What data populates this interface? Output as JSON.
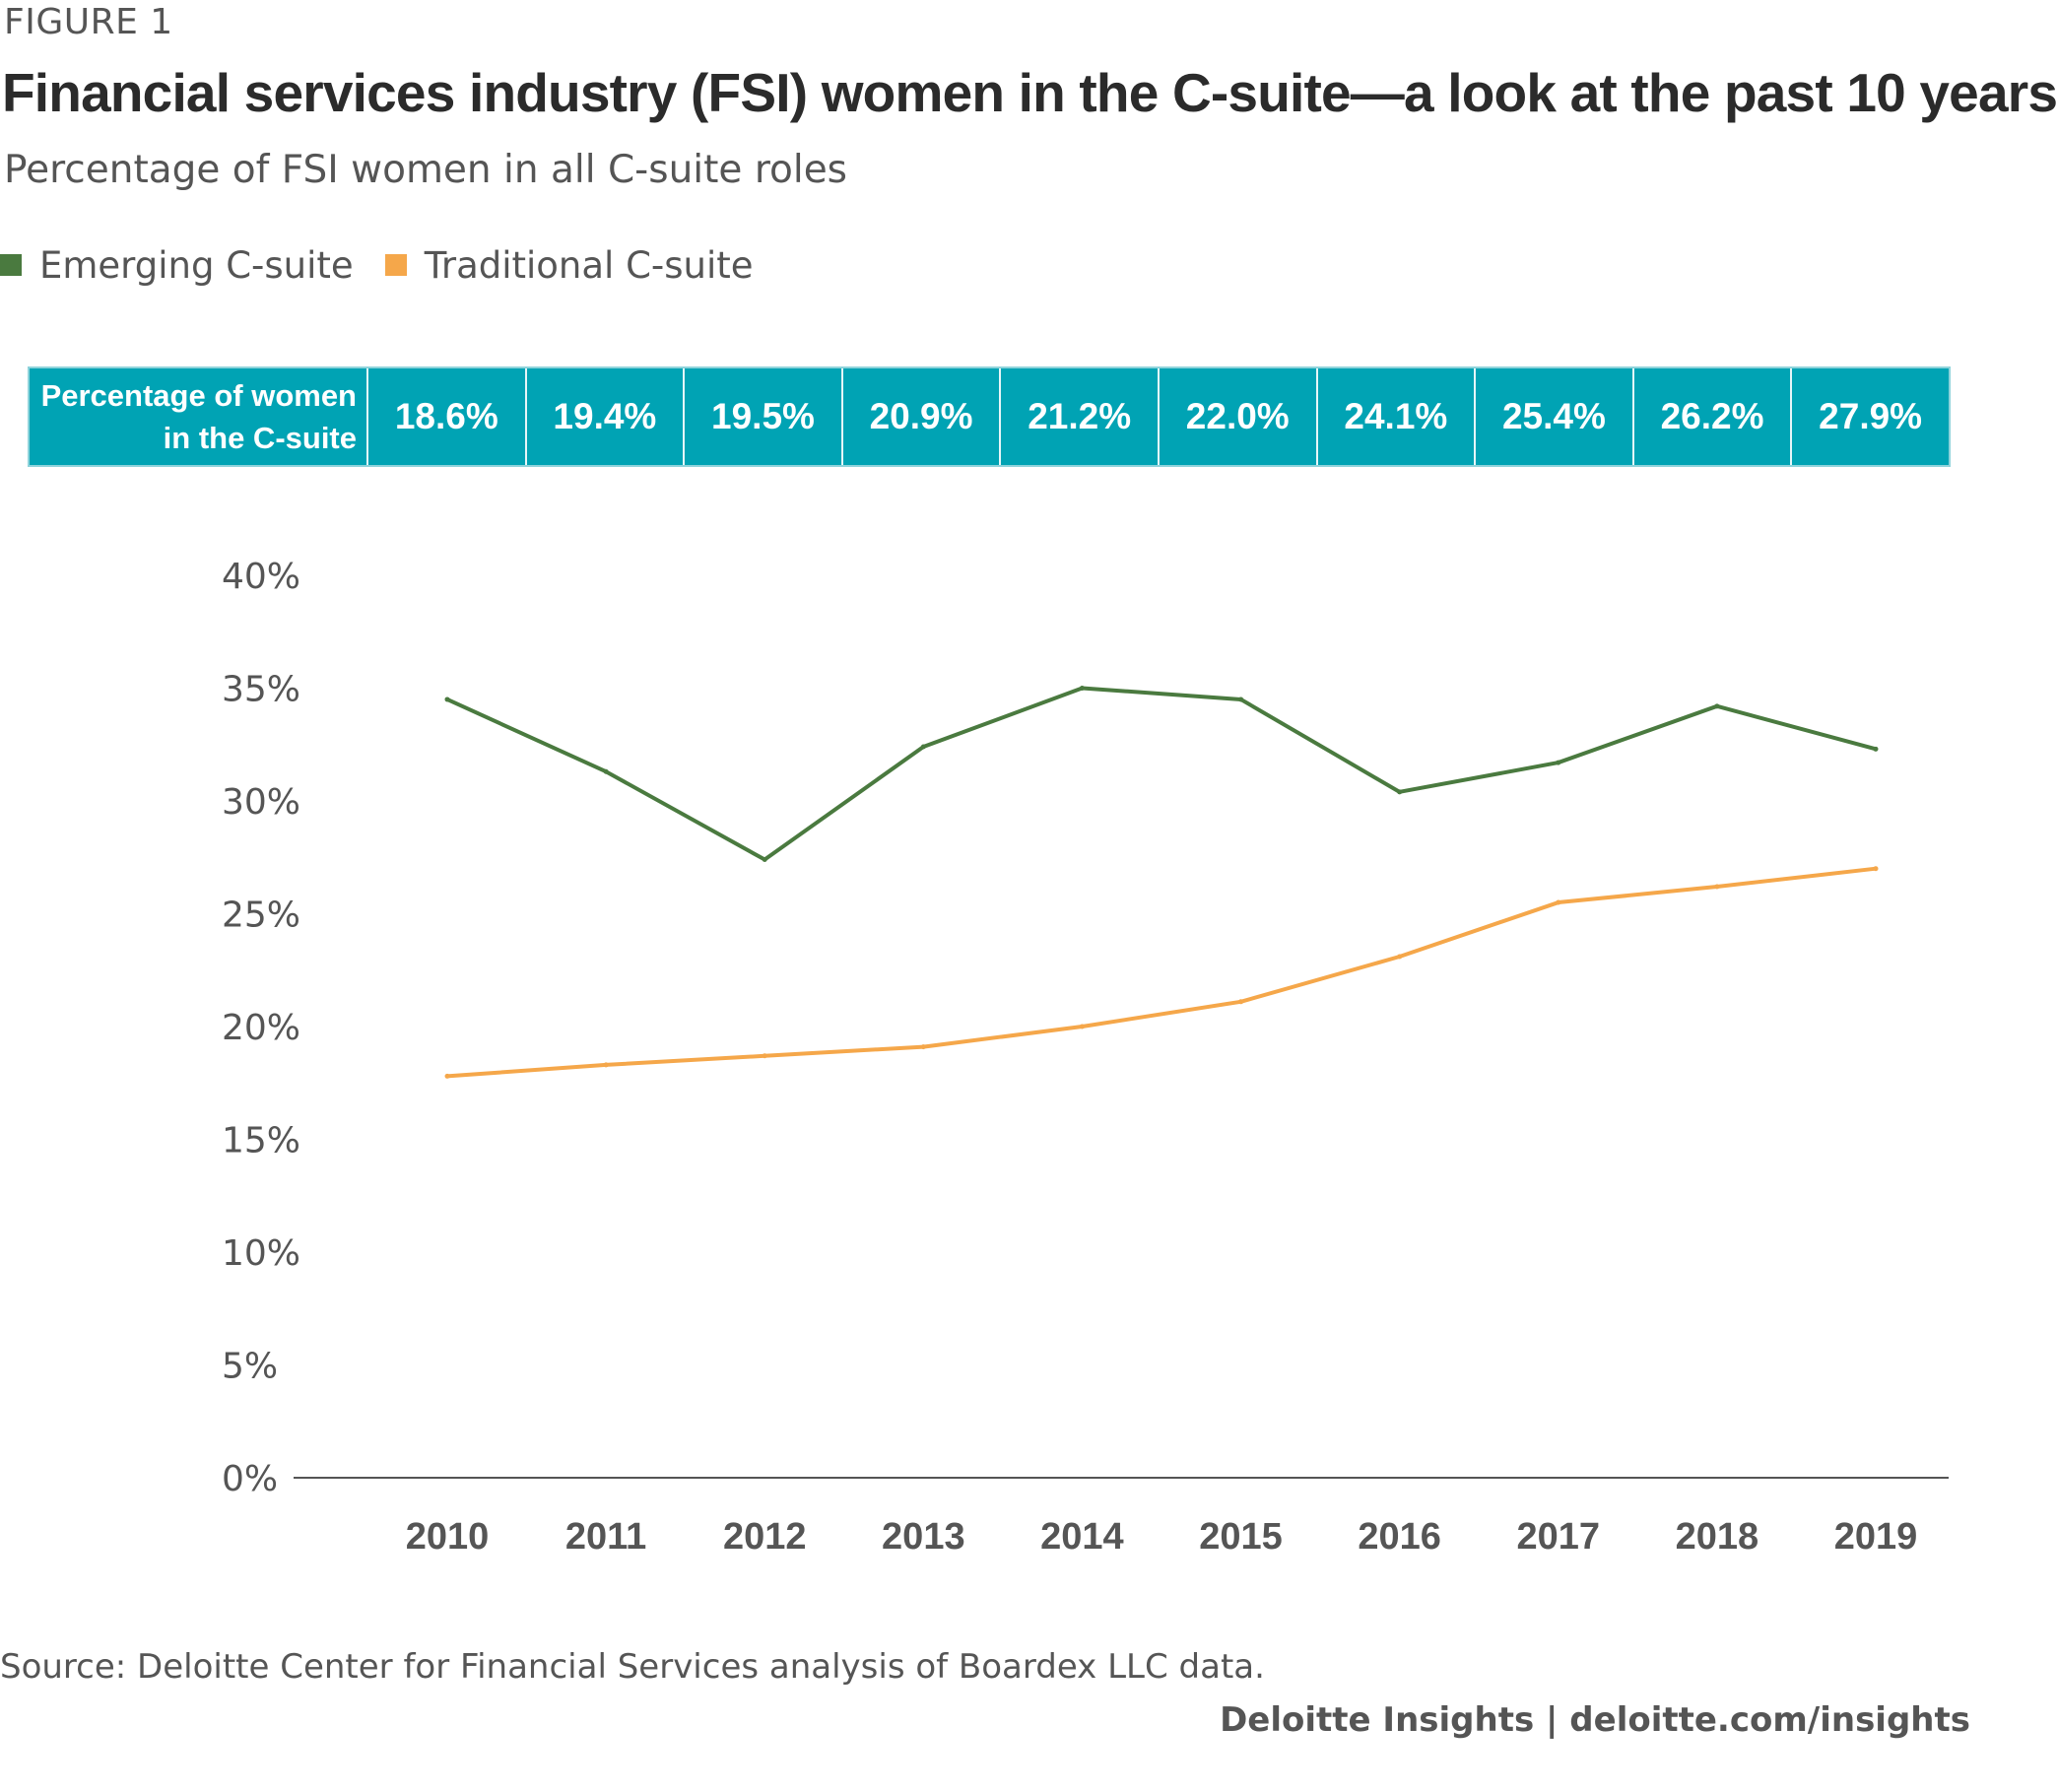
{
  "figure_label": "FIGURE 1",
  "header": {
    "title": "Financial services industry (FSI) women in the C-suite—a look at the past 10 years",
    "subtitle": "Percentage of FSI women in all C-suite roles"
  },
  "table": {
    "header": "Percentage of women\nin the C-suite",
    "values": [
      "18.6%",
      "19.4%",
      "19.5%",
      "20.9%",
      "21.2%",
      "22.0%",
      "24.1%",
      "25.4%",
      "26.2%",
      "27.9%"
    ]
  },
  "colors": {
    "emerging": "#4a7a3f",
    "traditional": "#f5a74a",
    "table_bg": "#00a3b4",
    "axis": "#555555"
  },
  "chart_data": {
    "type": "line",
    "x": [
      "2010",
      "2011",
      "2012",
      "2013",
      "2014",
      "2015",
      "2016",
      "2017",
      "2018",
      "2019"
    ],
    "series": [
      {
        "name": "Emerging C-suite",
        "color": "#4a7a3f",
        "values": [
          34.5,
          31.3,
          27.4,
          32.4,
          35.0,
          34.5,
          30.4,
          31.7,
          34.2,
          32.3
        ]
      },
      {
        "name": "Traditional C-suite",
        "color": "#f5a74a",
        "values": [
          17.8,
          18.3,
          18.7,
          19.1,
          20.0,
          21.1,
          23.1,
          25.5,
          26.2,
          27.0
        ]
      }
    ],
    "ylim": [
      0,
      40
    ],
    "yticks": [
      0,
      5,
      10,
      15,
      20,
      25,
      30,
      35,
      40
    ],
    "ytick_labels": [
      "0%",
      "5%",
      "10%",
      "15%",
      "20%",
      "25%",
      "30%",
      "35%",
      "40%"
    ],
    "legend_position": "top-left",
    "grid": false
  },
  "source": "Source: Deloitte Center for Financial Services analysis of Boardex LLC data.",
  "brand": "Deloitte Insights | deloitte.com/insights"
}
